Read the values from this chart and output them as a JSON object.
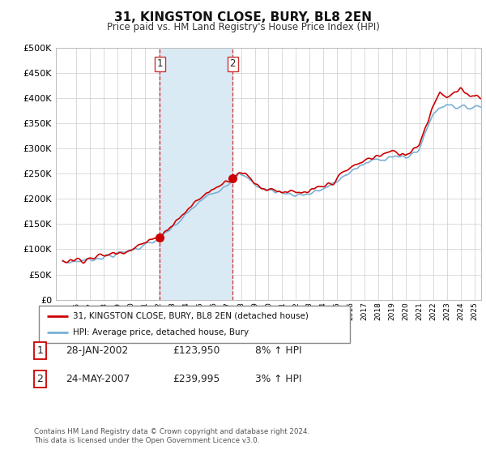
{
  "title": "31, KINGSTON CLOSE, BURY, BL8 2EN",
  "subtitle": "Price paid vs. HM Land Registry's House Price Index (HPI)",
  "footnote": "Contains HM Land Registry data © Crown copyright and database right 2024.\nThis data is licensed under the Open Government Licence v3.0.",
  "legend_line1": "31, KINGSTON CLOSE, BURY, BL8 2EN (detached house)",
  "legend_line2": "HPI: Average price, detached house, Bury",
  "sale1_label": "1",
  "sale1_date": "28-JAN-2002",
  "sale1_price": "£123,950",
  "sale1_hpi": "8% ↑ HPI",
  "sale2_label": "2",
  "sale2_date": "24-MAY-2007",
  "sale2_price": "£239,995",
  "sale2_hpi": "3% ↑ HPI",
  "hpi_color": "#7ab0d4",
  "price_color": "#cc0000",
  "marker_color": "#cc0000",
  "shade_color": "#daeaf5",
  "vline_color": "#cc3333",
  "bg_color": "#ffffff",
  "grid_color": "#cccccc",
  "ylim": [
    0,
    500000
  ],
  "yticks": [
    0,
    50000,
    100000,
    150000,
    200000,
    250000,
    300000,
    350000,
    400000,
    450000,
    500000
  ],
  "sale1_x": 2002.08,
  "sale1_y": 123950,
  "sale2_x": 2007.39,
  "sale2_y": 239995,
  "xmin": 1995.0,
  "xmax": 2025.5
}
